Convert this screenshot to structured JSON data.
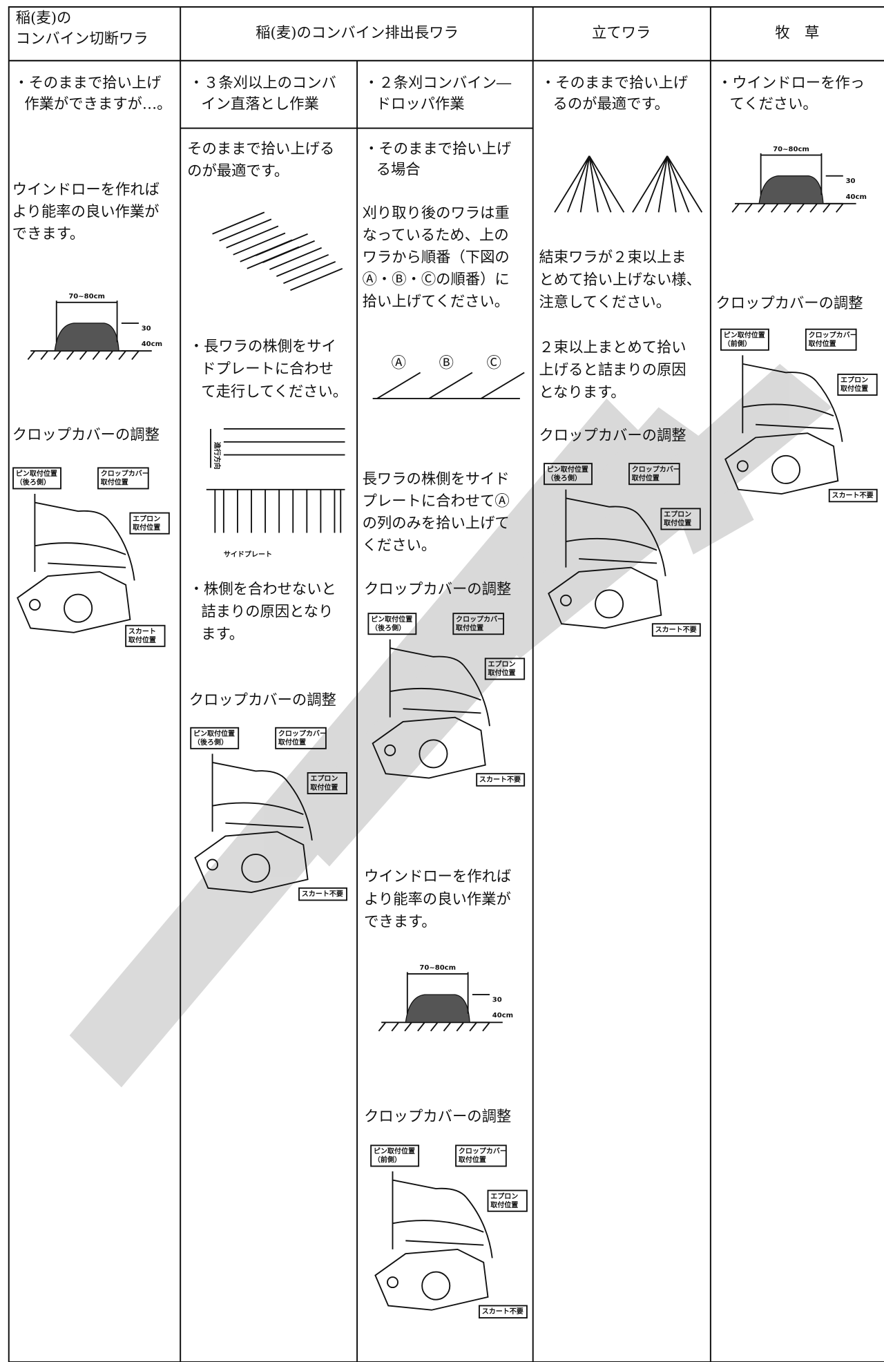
{
  "header": {
    "col1": [
      "稲(麦)の",
      "コンバイン切断ワラ"
    ],
    "col2": "稲(麦)のコンバイン排出長ワラ",
    "col3": "立てワラ",
    "col4": "牧　草"
  },
  "col1": {
    "lead": [
      "・そのままで拾い上げ",
      "作業ができますが…。"
    ],
    "windrow_note": [
      "ウインドローを作れば",
      "より能率の良い作業が",
      "できます。"
    ],
    "crop_cover": "クロップカバーの調整"
  },
  "col2a": {
    "sub": [
      "・３条刈以上のコンバ",
      "イン直落とし作業"
    ],
    "p1": [
      "そのままで拾い上げる",
      "のが最適です。"
    ],
    "p2": [
      "・長ワラの株側をサイ",
      "ドプレートに合わせ",
      "て走行してください。"
    ],
    "p3": [
      "・株側を合わせないと",
      "詰まりの原因となり",
      "ます。"
    ],
    "crop_cover": "クロップカバーの調整"
  },
  "col2b": {
    "sub": [
      "・２条刈コンバイン―",
      "ドロッパ作業"
    ],
    "p1": [
      "・そのままで拾い上げ",
      "る場合"
    ],
    "p2": [
      "刈り取り後のワラは重",
      "なっているため、上の",
      "ワラから順番（下図の",
      "Ⓐ・Ⓑ・Ⓒの順番）に",
      "拾い上げてください。"
    ],
    "p3": [
      "長ワラの株側をサイド",
      "プレートに合わせてⒶ",
      "の列のみを拾い上げて",
      "ください。"
    ],
    "crop_cover1": "クロップカバーの調整",
    "p4": [
      "ウインドローを作れば",
      "より能率の良い作業が",
      "できます。"
    ],
    "crop_cover2": "クロップカバーの調整"
  },
  "col3": {
    "lead": [
      "・そのままで拾い上げ",
      "るのが最適です。"
    ],
    "p1": [
      "結束ワラが２束以上ま",
      "とめて拾い上げない様、",
      "注意してください。"
    ],
    "p2": [
      "２束以上まとめて拾い",
      "上げると詰まりの原因",
      "となります。"
    ],
    "crop_cover": "クロップカバーの調整"
  },
  "col4": {
    "lead": [
      "・ウインドローを作っ",
      "てください。"
    ],
    "crop_cover": "クロップカバーの調整"
  },
  "figure_labels": {
    "width": "70~80cm",
    "height": [
      "30",
      "40cm"
    ],
    "pin_rear": [
      "ピン取付位置",
      "（後ろ側）"
    ],
    "pin_front": [
      "ピン取付位置",
      "（前側）"
    ],
    "crop_cover_pos": [
      "クロップカバー",
      "取付位置"
    ],
    "apron": [
      "エプロン",
      "取付位置"
    ],
    "skirt": [
      "スカート",
      "取付位置"
    ],
    "skirt_none": "スカート不要",
    "direction": "進行方向",
    "side_plate": "サイドプレート",
    "rows": [
      "Ⓐ",
      "Ⓑ",
      "Ⓒ"
    ]
  }
}
